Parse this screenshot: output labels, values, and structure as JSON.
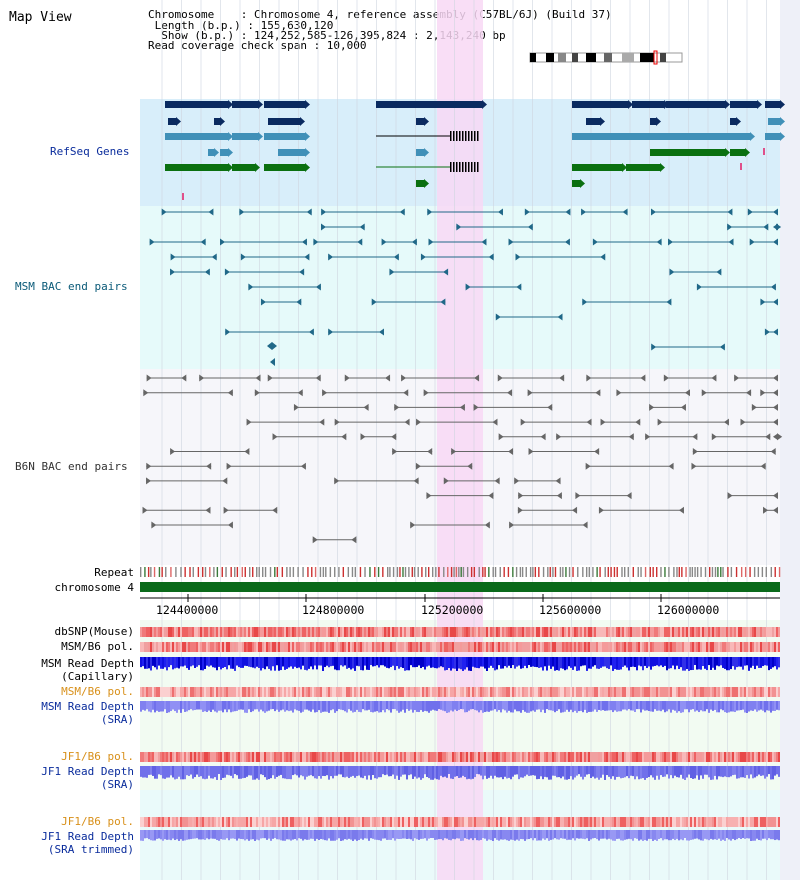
{
  "title": "Map View",
  "header": {
    "chromosome": "Chromosome    : Chromosome 4, reference assembly (C57BL/6J) (Build 37)",
    "length": " Length (b.p.) : 155,630,120",
    "show": "  Show (b.p.) : 124,252,585-126,395,824 : 2,143,240 bp",
    "coverage": "Read coverage check span : 10,000"
  },
  "tracks": {
    "refseq": "RefSeq Genes",
    "msm_bac": "MSM BAC end pairs",
    "b6n_bac": "B6N BAC end pairs",
    "repeat": "Repeat",
    "chromosome": "chromosome 4",
    "dbsnp": "dbSNP(Mouse)",
    "msm_b6_pol_1": "MSM/B6 pol.",
    "msm_depth_cap_1": "MSM Read Depth",
    "msm_depth_cap_2": "(Capillary)",
    "msm_b6_pol_2": "MSM/B6 pol.",
    "msm_depth_sra_1": "MSM Read Depth",
    "msm_depth_sra_2": "(SRA)",
    "jf1_b6_pol_1": "JF1/B6 pol.",
    "jf1_depth_sra_1": "JF1 Read Depth",
    "jf1_depth_sra_2": "(SRA)",
    "jf1_b6_pol_2": "JF1/B6 pol.",
    "jf1_depth_trim_1": "JF1 Read Depth",
    "jf1_depth_trim_2": "(SRA trimmed)"
  },
  "axis": {
    "ticks": [
      "124400000",
      "124800000",
      "125200000",
      "125600000",
      "126000000"
    ]
  },
  "colors": {
    "refseq_bg": "#d8eefa",
    "msm_bg": "#e6fafa",
    "highlight": "#f8d8f4",
    "gene_dark": "#0a2a60",
    "gene_mid": "#4090b8",
    "gene_green": "#0a7010",
    "bac_teal": "#206888",
    "bac_gray": "#666666",
    "chrom": "#0a6a1a"
  }
}
